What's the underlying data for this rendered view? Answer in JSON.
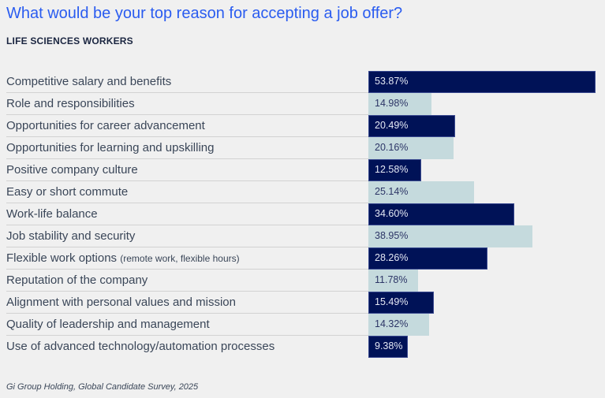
{
  "title": "What would be your top reason for accepting a job offer?",
  "subtitle": "LIFE SCIENCES WORKERS",
  "footer": "Gi Group Holding, Global Candidate Survey, 2025",
  "colors": {
    "title": "#2a5cf0",
    "dark_bar": "#001257",
    "light_bar": "#c5dadd"
  },
  "chart_data": {
    "type": "bar",
    "orientation": "horizontal",
    "title": "What would be your top reason for accepting a job offer?",
    "subtitle": "LIFE SCIENCES WORKERS",
    "grid": false,
    "xlim": [
      0,
      53.87
    ],
    "categories": [
      {
        "label": "Competitive salary and benefits",
        "note": ""
      },
      {
        "label": "Role and responsibilities",
        "note": ""
      },
      {
        "label": "Opportunities for career advancement",
        "note": ""
      },
      {
        "label": "Opportunities for learning and upskilling",
        "note": ""
      },
      {
        "label": "Positive company culture",
        "note": ""
      },
      {
        "label": "Easy or short commute",
        "note": ""
      },
      {
        "label": "Work-life balance",
        "note": ""
      },
      {
        "label": "Job stability and security",
        "note": ""
      },
      {
        "label": "Flexible work options",
        "note": "(remote work, flexible hours)"
      },
      {
        "label": "Reputation of the company",
        "note": ""
      },
      {
        "label": "Alignment with personal values and mission",
        "note": ""
      },
      {
        "label": "Quality of leadership and management",
        "note": ""
      },
      {
        "label": "Use of advanced technology/automation processes",
        "note": ""
      }
    ],
    "values": [
      53.87,
      14.98,
      20.49,
      20.16,
      12.58,
      25.14,
      34.6,
      38.95,
      28.26,
      11.78,
      15.49,
      14.32,
      9.38
    ],
    "value_labels": [
      "53.87%",
      "14.98%",
      "20.49%",
      "20.16%",
      "12.58%",
      "25.14%",
      "34.60%",
      "38.95%",
      "28.26%",
      "11.78%",
      "15.49%",
      "14.32%",
      "9.38%"
    ],
    "bar_styles": [
      "dark",
      "light",
      "dark",
      "light",
      "dark",
      "light",
      "dark",
      "light",
      "dark",
      "light",
      "dark",
      "light",
      "dark"
    ]
  }
}
